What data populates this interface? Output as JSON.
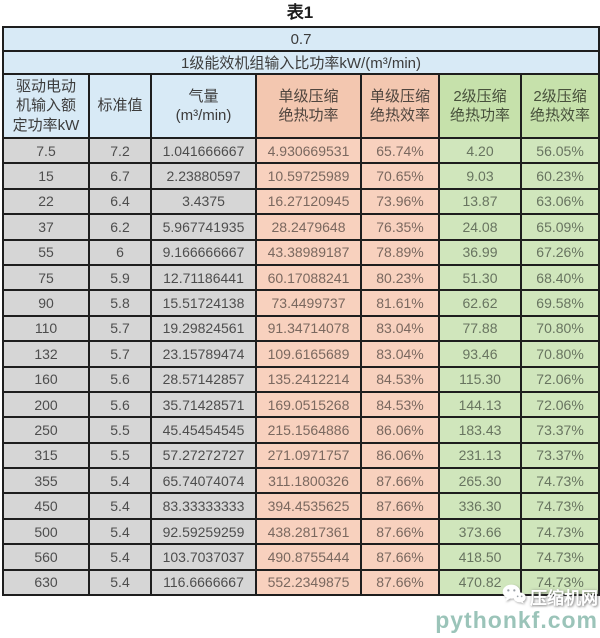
{
  "page_title": "表1",
  "table": {
    "top_value": "0.7",
    "subtitle": "1级能效机组输入比功率kW/(m³/min)",
    "columns": [
      {
        "label": "驱动电动\n机输入额\n定功率kW"
      },
      {
        "label": "标准值"
      },
      {
        "label": "气量\n(m³/min)"
      },
      {
        "label": "单级压缩\n绝热功率"
      },
      {
        "label": "单级压缩\n绝热效率"
      },
      {
        "label": "2级压缩\n绝热功率"
      },
      {
        "label": "2级压缩\n绝热效率"
      }
    ],
    "rows": [
      [
        "7.5",
        "7.2",
        "1.041666667",
        "4.930669531",
        "65.74%",
        "4.20",
        "56.05%"
      ],
      [
        "15",
        "6.7",
        "2.23880597",
        "10.59725989",
        "70.65%",
        "9.03",
        "60.23%"
      ],
      [
        "22",
        "6.4",
        "3.4375",
        "16.27120945",
        "73.96%",
        "13.87",
        "63.06%"
      ],
      [
        "37",
        "6.2",
        "5.967741935",
        "28.2479648",
        "76.35%",
        "24.08",
        "65.09%"
      ],
      [
        "55",
        "6",
        "9.166666667",
        "43.38989187",
        "78.89%",
        "36.99",
        "67.26%"
      ],
      [
        "75",
        "5.9",
        "12.71186441",
        "60.17088241",
        "80.23%",
        "51.30",
        "68.40%"
      ],
      [
        "90",
        "5.8",
        "15.51724138",
        "73.4499737",
        "81.61%",
        "62.62",
        "69.58%"
      ],
      [
        "110",
        "5.7",
        "19.29824561",
        "91.34714078",
        "83.04%",
        "77.88",
        "70.80%"
      ],
      [
        "132",
        "5.7",
        "23.15789474",
        "109.6165689",
        "83.04%",
        "93.46",
        "70.80%"
      ],
      [
        "160",
        "5.6",
        "28.57142857",
        "135.2412214",
        "84.53%",
        "115.30",
        "72.06%"
      ],
      [
        "200",
        "5.6",
        "35.71428571",
        "169.0515268",
        "84.53%",
        "144.13",
        "72.06%"
      ],
      [
        "250",
        "5.5",
        "45.45454545",
        "215.1564886",
        "86.06%",
        "183.43",
        "73.37%"
      ],
      [
        "315",
        "5.5",
        "57.27272727",
        "271.0971757",
        "86.06%",
        "231.13",
        "73.37%"
      ],
      [
        "355",
        "5.4",
        "65.74074074",
        "311.1800326",
        "87.66%",
        "265.30",
        "74.73%"
      ],
      [
        "450",
        "5.4",
        "83.33333333",
        "394.4535625",
        "87.66%",
        "336.30",
        "74.73%"
      ],
      [
        "500",
        "5.4",
        "92.59259259",
        "438.2817361",
        "87.66%",
        "373.66",
        "74.73%"
      ],
      [
        "560",
        "5.4",
        "103.7037037",
        "490.8755444",
        "87.66%",
        "418.50",
        "74.73%"
      ],
      [
        "630",
        "5.4",
        "116.6666667",
        "552.2349875",
        "87.66%",
        "470.82",
        "74.73%"
      ]
    ]
  },
  "watermark": {
    "brand": "压缩机网",
    "site": "pythonkf.com",
    "icon": "wechat-icon"
  },
  "colors": {
    "header_blue": "#d8eaf6",
    "cell_gray": "#d6d6d6",
    "header_salmon": "#f3c7b0",
    "cell_salmon": "#f8d1be",
    "header_green": "#c6e1ab",
    "cell_green": "#d0e6bc",
    "border": "#1e1e1e"
  }
}
